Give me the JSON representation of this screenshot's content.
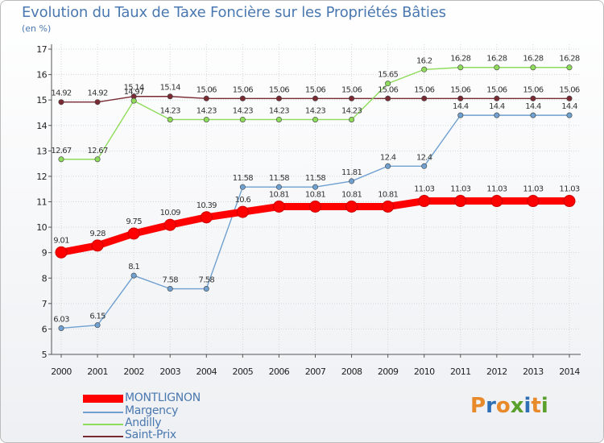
{
  "chart_data": {
    "type": "line",
    "title": "Evolution du Taux de Taxe Foncière sur les Propriétés Bâties",
    "subtitle": "(en %)",
    "xlabel": "",
    "ylabel": "",
    "ylim": [
      5,
      17
    ],
    "y_ticks": [
      "5",
      "6",
      "7",
      "8",
      "9",
      "10",
      "11",
      "12",
      "13",
      "14",
      "15",
      "16",
      "17"
    ],
    "categories": [
      "2000",
      "2001",
      "2002",
      "2003",
      "2004",
      "2005",
      "2006",
      "2007",
      "2008",
      "2009",
      "2010",
      "2011",
      "2012",
      "2013",
      "2014"
    ],
    "series": [
      {
        "name": "MONTLIGNON",
        "color": "#ff0000",
        "values": [
          9.01,
          9.28,
          9.75,
          10.09,
          10.39,
          10.6,
          10.81,
          10.81,
          10.81,
          10.81,
          11.03,
          11.03,
          11.03,
          11.03,
          11.03
        ],
        "labels": [
          "9.01",
          "9.28",
          "9.75",
          "10.09",
          "10.39",
          "10.6",
          "10.81",
          "10.81",
          "10.81",
          "10.81",
          "11.03",
          "11.03",
          "11.03",
          "11.03",
          "11.03"
        ]
      },
      {
        "name": "Margency",
        "color": "#6fa0d0",
        "values": [
          6.03,
          6.15,
          8.1,
          7.58,
          7.58,
          11.58,
          11.58,
          11.58,
          11.81,
          12.4,
          12.4,
          14.4,
          14.4,
          14.4,
          14.4
        ],
        "labels": [
          "6.03",
          "6.15",
          "8.1",
          "7.58",
          "7.58",
          "11.58",
          "11.58",
          "11.58",
          "11.81",
          "12.4",
          "12.4",
          "14.4",
          "14.4",
          "14.4",
          "14.4"
        ]
      },
      {
        "name": "Andilly",
        "color": "#8edc5a",
        "values": [
          12.67,
          12.67,
          14.97,
          14.23,
          14.23,
          14.23,
          14.23,
          14.23,
          14.23,
          15.65,
          16.2,
          16.28,
          16.28,
          16.28,
          16.28
        ],
        "labels": [
          "12.67",
          "12.67",
          "14.97",
          "14.23",
          "14.23",
          "14.23",
          "14.23",
          "14.23",
          "14.23",
          "15.65",
          "16.2",
          "16.28",
          "16.28",
          "16.28",
          "16.28"
        ]
      },
      {
        "name": "Saint-Prix",
        "color": "#7a2a33",
        "values": [
          14.92,
          14.92,
          15.14,
          15.14,
          15.06,
          15.06,
          15.06,
          15.06,
          15.06,
          15.06,
          15.06,
          15.06,
          15.06,
          15.06,
          15.06
        ],
        "labels": [
          "14.92",
          "14.92",
          "15.14",
          "15.14",
          "15.06",
          "15.06",
          "15.06",
          "15.06",
          "15.06",
          "15.06",
          "15.06",
          "15.06",
          "15.06",
          "15.06",
          "15.06"
        ]
      }
    ],
    "legend_position": "bottom-left"
  },
  "brand": {
    "text": "Proxiti",
    "letters": [
      "P",
      "r",
      "o",
      "x",
      "i",
      "t",
      "i"
    ],
    "letter_colors": [
      "#e88a2a",
      "#2e6fb5",
      "#e88a2a",
      "#5aa02c",
      "#2e6fb5",
      "#e88a2a",
      "#5aa02c"
    ]
  }
}
